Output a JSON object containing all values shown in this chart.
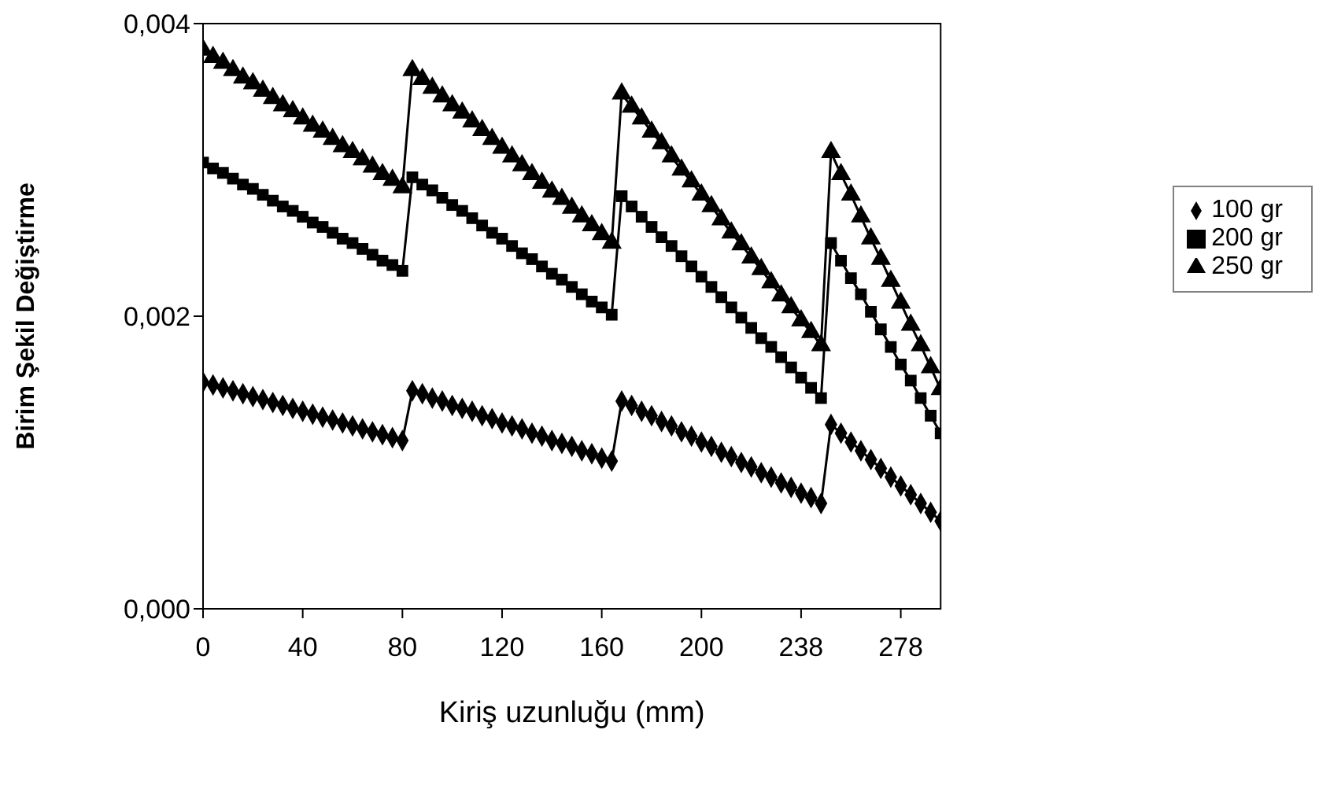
{
  "chart_data": {
    "type": "line",
    "xlabel": "Kiriş uzunluğu (mm)",
    "ylabel": "Birim Şekil Değiştirme",
    "categories": [
      "0",
      null,
      null,
      null,
      null,
      null,
      null,
      null,
      null,
      null,
      "40",
      null,
      null,
      null,
      null,
      null,
      null,
      null,
      null,
      null,
      "80",
      null,
      null,
      null,
      null,
      null,
      null,
      null,
      null,
      null,
      "120",
      null,
      null,
      null,
      null,
      null,
      null,
      null,
      null,
      null,
      "160",
      null,
      null,
      null,
      null,
      null,
      null,
      null,
      null,
      null,
      "200",
      null,
      null,
      null,
      null,
      null,
      null,
      null,
      null,
      null,
      "238",
      null,
      null,
      null,
      null,
      null,
      null,
      null,
      null,
      null,
      "278",
      null,
      null,
      null,
      null
    ],
    "ylim": [
      0,
      0.004
    ],
    "yticks": [
      {
        "value": 0,
        "label": "0,000"
      },
      {
        "value": 0.002,
        "label": "0,002"
      },
      {
        "value": 0.004,
        "label": "0,004"
      }
    ],
    "grid": false,
    "legend": "right",
    "line_style": "solid",
    "series": [
      {
        "name": "100 gr",
        "color": "#000000",
        "marker": "diamond",
        "values": [
          0.00155,
          0.00153,
          0.00151,
          0.00149,
          0.00147,
          0.00145,
          0.00143,
          0.00141,
          0.00139,
          0.00137,
          0.00135,
          0.00133,
          0.00131,
          0.00129,
          0.00127,
          0.00125,
          0.00123,
          0.00121,
          0.00119,
          0.00117,
          0.00115,
          0.00149,
          0.00147,
          0.00144,
          0.00142,
          0.00139,
          0.00137,
          0.00135,
          0.00132,
          0.0013,
          0.00127,
          0.00125,
          0.00123,
          0.0012,
          0.00118,
          0.00115,
          0.00113,
          0.00111,
          0.00108,
          0.00106,
          0.00103,
          0.00101,
          0.00142,
          0.00139,
          0.00135,
          0.00132,
          0.00128,
          0.00125,
          0.00121,
          0.00118,
          0.00114,
          0.00111,
          0.00107,
          0.00104,
          0.001,
          0.00097,
          0.00093,
          0.0009,
          0.00086,
          0.00083,
          0.00079,
          0.00076,
          0.00072,
          0.00126,
          0.0012,
          0.00114,
          0.00108,
          0.00102,
          0.00096,
          0.0009,
          0.00084,
          0.00078,
          0.00072,
          0.00066,
          0.0006
        ]
      },
      {
        "name": "200 gr",
        "color": "#000000",
        "marker": "square",
        "values": [
          0.00305,
          0.00301,
          0.00298,
          0.00294,
          0.0029,
          0.00287,
          0.00283,
          0.00279,
          0.00275,
          0.00272,
          0.00268,
          0.00264,
          0.00261,
          0.00257,
          0.00253,
          0.0025,
          0.00246,
          0.00242,
          0.00238,
          0.00235,
          0.00231,
          0.00295,
          0.0029,
          0.00286,
          0.00281,
          0.00276,
          0.00272,
          0.00267,
          0.00262,
          0.00257,
          0.00253,
          0.00248,
          0.00243,
          0.00239,
          0.00234,
          0.00229,
          0.00225,
          0.0022,
          0.00215,
          0.0021,
          0.00206,
          0.00201,
          0.00282,
          0.00275,
          0.00268,
          0.00261,
          0.00254,
          0.00248,
          0.00241,
          0.00234,
          0.00227,
          0.0022,
          0.00213,
          0.00206,
          0.00199,
          0.00192,
          0.00185,
          0.00179,
          0.00172,
          0.00165,
          0.00158,
          0.00151,
          0.00144,
          0.0025,
          0.00238,
          0.00226,
          0.00215,
          0.00203,
          0.00191,
          0.00179,
          0.00167,
          0.00156,
          0.00144,
          0.00132,
          0.0012
        ]
      },
      {
        "name": "250 gr",
        "color": "#000000",
        "marker": "triangle",
        "values": [
          0.00382,
          0.00377,
          0.00373,
          0.00368,
          0.00363,
          0.00359,
          0.00354,
          0.00349,
          0.00344,
          0.0034,
          0.00335,
          0.0033,
          0.00326,
          0.00321,
          0.00316,
          0.00312,
          0.00307,
          0.00302,
          0.00297,
          0.00293,
          0.00288,
          0.00368,
          0.00362,
          0.00356,
          0.0035,
          0.00344,
          0.00339,
          0.00333,
          0.00327,
          0.00321,
          0.00315,
          0.00309,
          0.00303,
          0.00297,
          0.00291,
          0.00285,
          0.0028,
          0.00274,
          0.00268,
          0.00262,
          0.00256,
          0.0025,
          0.00352,
          0.00343,
          0.00335,
          0.00326,
          0.00318,
          0.00309,
          0.003,
          0.00292,
          0.00283,
          0.00275,
          0.00266,
          0.00257,
          0.00249,
          0.0024,
          0.00232,
          0.00223,
          0.00214,
          0.00206,
          0.00197,
          0.00189,
          0.0018,
          0.00312,
          0.00297,
          0.00283,
          0.00268,
          0.00253,
          0.00239,
          0.00224,
          0.00209,
          0.00194,
          0.0018,
          0.00165,
          0.0015
        ]
      }
    ]
  }
}
